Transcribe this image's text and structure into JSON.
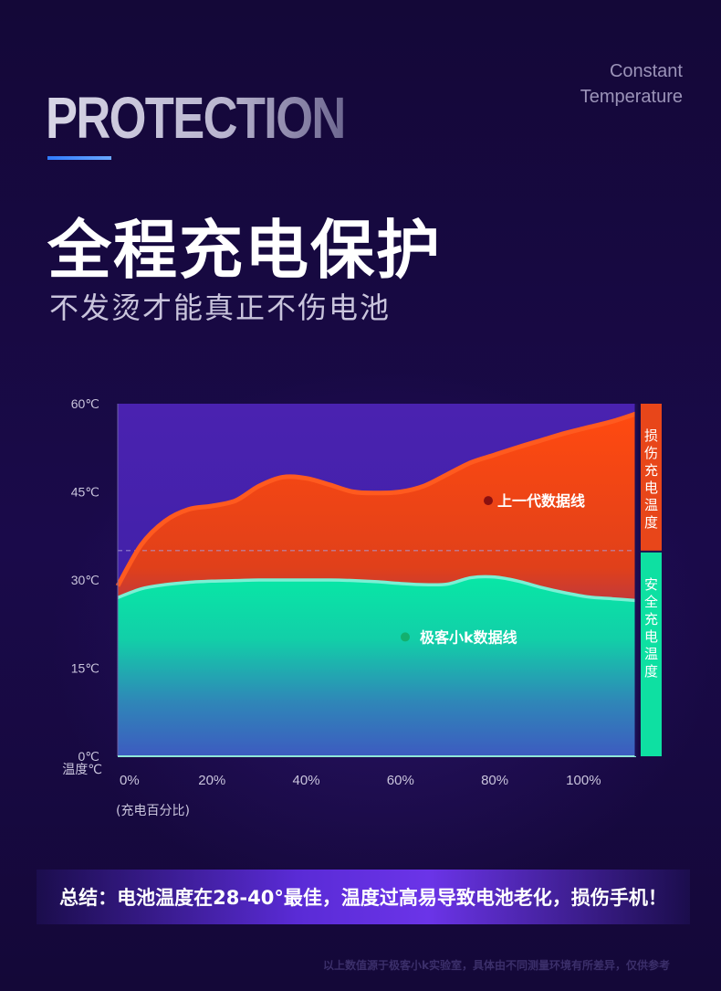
{
  "tag": {
    "line1": "Constant",
    "line2": "Temperature"
  },
  "header": {
    "big_word": "PROTECTION"
  },
  "headline": "全程充电保护",
  "subline": "不发烫才能真正不伤电池",
  "chart_data": {
    "type": "area",
    "x_tick_labels": [
      "0%",
      "20%",
      "40%",
      "60%",
      "80%",
      "100%"
    ],
    "x_note": "(充电百分比)",
    "y_tick_labels": [
      "60℃",
      "45℃",
      "30℃",
      "15℃",
      "0℃"
    ],
    "ylabel": "温度℃",
    "xlim": [
      0,
      110
    ],
    "ylim": [
      0,
      60
    ],
    "threshold": 35,
    "series": [
      {
        "name": "上一代数据线",
        "color": "#ff5a1f",
        "x": [
          0,
          5,
          10,
          15,
          20,
          25,
          30,
          35,
          40,
          45,
          50,
          55,
          60,
          65,
          70,
          75,
          80,
          85,
          90,
          95,
          100,
          105,
          110
        ],
        "y": [
          29,
          36,
          40,
          42,
          42.6,
          43.5,
          46,
          47.5,
          47.3,
          46.2,
          45,
          44.8,
          45,
          46,
          48,
          50,
          51.3,
          52.6,
          53.8,
          55,
          56,
          57,
          58.3
        ]
      },
      {
        "name": "极客小k数据线",
        "color": "#00e0a8",
        "x": [
          0,
          5,
          10,
          15,
          20,
          25,
          30,
          35,
          40,
          45,
          50,
          55,
          60,
          65,
          70,
          75,
          80,
          85,
          90,
          95,
          100,
          105,
          110
        ],
        "y": [
          27,
          28.5,
          29.2,
          29.6,
          29.8,
          29.9,
          30,
          30,
          30,
          30,
          29.9,
          29.7,
          29.4,
          29.2,
          29.3,
          30.4,
          30.5,
          29.8,
          28.7,
          27.8,
          27.1,
          26.8,
          26.5
        ]
      }
    ],
    "bands": [
      {
        "label": "损伤充电温度",
        "from": 35,
        "to": 60,
        "color": "#e8461a"
      },
      {
        "label": "安全充电温度",
        "from": 0,
        "to": 35,
        "color": "#0ee0a2"
      }
    ]
  },
  "summary": "总结：电池温度在28-40°最佳，温度过高易导致电池老化，损伤手机！",
  "footnote": "以上数值源于极客小k实验室，具体由不同测量环境有所差异，仅供参考"
}
